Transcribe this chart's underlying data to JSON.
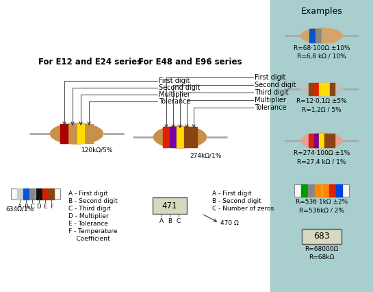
{
  "bg_color": "#ffffff",
  "panel_color": "#a8cece",
  "title_e12": "For E12 and E24 series",
  "title_e48": "For E48 and E96 series",
  "examples_title": "Examples",
  "e12_labels": [
    "First digit",
    "Second digit",
    "Multiplier",
    "Tolerance"
  ],
  "e48_labels": [
    "First digit",
    "Second digit",
    "Third digit",
    "Multiplier",
    "Tolerance"
  ],
  "e12_legend": [
    "A - First digit",
    "B - Second digit",
    "C - Third digit",
    "D - Multiplier",
    "E - Tolerance",
    "F - Temperature",
    "    Coefficient"
  ],
  "e48_legend": [
    "A - First digit",
    "B - Second digit",
    "C - Number of zeros"
  ],
  "ex1_text": "R=68·100Ω ±10%\nR=6,8 kΩ / 10%",
  "ex2_text": "R=12·0,1Ω ±5%\nR=1,2Ω / 5%",
  "ex3_text": "R=274·100Ω ±1%\nR=27,4 kΩ / 1%",
  "ex4_text": "R=536·1kΩ ±2%\nR=536kΩ / 2%",
  "ex5_text": "R=68000Ω\nR=68kΩ",
  "ex5_code": "683",
  "res1_label": "120kΩ/5%",
  "res2_label": "274kΩ/1%",
  "flat_label": "634Ω/1%",
  "smd_label": "470 Ω",
  "wire_color": "#aaaaaa",
  "body1_color": "#c8914a",
  "body2_color": "#c0c0c0",
  "body3_color": "#e8a898",
  "flat_bg": "#f8f8f8",
  "smd_bg": "#d8d8c0"
}
